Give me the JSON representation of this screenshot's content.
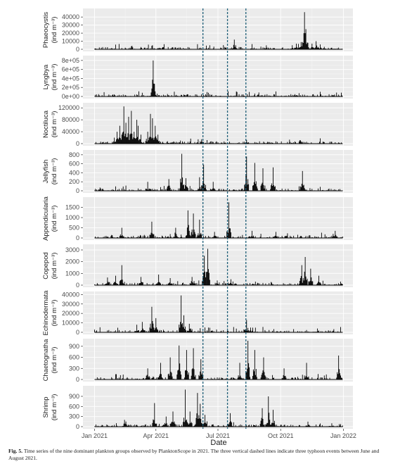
{
  "chart_data": {
    "type": "line",
    "layout": "faceted",
    "xlabel": "Date",
    "x_ticks": [
      {
        "label": "Jan 2021",
        "date": "2021-01-01"
      },
      {
        "label": "Apr 2021",
        "date": "2021-04-01"
      },
      {
        "label": "Jul 2021",
        "date": "2021-07-01"
      },
      {
        "label": "Oct 2021",
        "date": "2021-10-01"
      },
      {
        "label": "Jan 2022",
        "date": "2022-01-01"
      }
    ],
    "xlim": [
      "2020-12-15",
      "2022-01-15"
    ],
    "typhoon_lines": [
      "2021-06-09",
      "2021-07-15",
      "2021-08-11"
    ],
    "panels": [
      {
        "label": "Phaeocystis",
        "unit": "(ind m⁻³)",
        "ylim": [
          0,
          48000
        ],
        "ticks": [
          0,
          10000,
          20000,
          30000,
          40000
        ],
        "tick_labels": [
          "0",
          "10000",
          "20000",
          "30000",
          "40000"
        ],
        "events": [
          [
            "2021-07-25",
            12000
          ],
          [
            "2021-07-27",
            5000
          ],
          [
            "2021-08-20",
            2500
          ],
          [
            "2021-10-18",
            5000
          ],
          [
            "2021-10-24",
            7000
          ],
          [
            "2021-10-31",
            9000
          ],
          [
            "2021-11-04",
            20000
          ],
          [
            "2021-11-05",
            46000
          ],
          [
            "2021-11-07",
            25000
          ],
          [
            "2021-11-10",
            8000
          ],
          [
            "2021-11-16",
            7000
          ],
          [
            "2021-11-22",
            10000
          ],
          [
            "2021-11-28",
            6000
          ],
          [
            "2021-12-04",
            3000
          ]
        ]
      },
      {
        "label": "Lyngbya",
        "unit": "(ind m⁻³)",
        "ylim": [
          0,
          860000
        ],
        "ticks": [
          0,
          200000,
          400000,
          600000,
          800000
        ],
        "tick_labels": [
          "0e+00",
          "2e+05",
          "4e+05",
          "6e+05",
          "8e+05"
        ],
        "events": [
          [
            "2021-01-27",
            30000
          ],
          [
            "2021-01-30",
            45000
          ],
          [
            "2021-03-26",
            60000
          ],
          [
            "2021-03-28",
            800000
          ],
          [
            "2021-03-30",
            120000
          ],
          [
            "2021-05-31",
            15000
          ],
          [
            "2021-08-09",
            12000
          ],
          [
            "2021-11-06",
            10000
          ]
        ]
      },
      {
        "label": "Noctiluca",
        "unit": "(ind m⁻³)",
        "ylim": [
          0,
          130000
        ],
        "ticks": [
          0,
          40000,
          80000,
          120000
        ],
        "tick_labels": [
          "0",
          "40000",
          "80000",
          "120000"
        ],
        "events": [
          [
            "2021-01-20",
            5000
          ],
          [
            "2021-01-30",
            20000
          ],
          [
            "2021-02-03",
            40000
          ],
          [
            "2021-02-07",
            60000
          ],
          [
            "2021-02-10",
            30000
          ],
          [
            "2021-02-13",
            125000
          ],
          [
            "2021-02-16",
            70000
          ],
          [
            "2021-02-20",
            90000
          ],
          [
            "2021-02-24",
            110000
          ],
          [
            "2021-02-28",
            40000
          ],
          [
            "2021-03-04",
            80000
          ],
          [
            "2021-03-06",
            60000
          ],
          [
            "2021-03-10",
            30000
          ],
          [
            "2021-03-20",
            40000
          ],
          [
            "2021-03-24",
            100000
          ],
          [
            "2021-03-27",
            85000
          ],
          [
            "2021-03-31",
            60000
          ],
          [
            "2021-04-04",
            30000
          ],
          [
            "2021-04-18",
            8000
          ],
          [
            "2021-08-12",
            12000
          ]
        ]
      },
      {
        "label": "Jellyfish",
        "unit": "(ind m⁻³)",
        "ylim": [
          0,
          860
        ],
        "ticks": [
          0,
          200,
          400,
          600,
          800
        ],
        "tick_labels": [
          "0",
          "200",
          "400",
          "600",
          "800"
        ],
        "events": [
          [
            "2021-03-20",
            200
          ],
          [
            "2021-04-20",
            260
          ],
          [
            "2021-05-09",
            820
          ],
          [
            "2021-05-15",
            280
          ],
          [
            "2021-06-04",
            300
          ],
          [
            "2021-06-10",
            580
          ],
          [
            "2021-06-24",
            200
          ],
          [
            "2021-08-12",
            760
          ],
          [
            "2021-08-24",
            620
          ],
          [
            "2021-09-05",
            500
          ],
          [
            "2021-09-20",
            520
          ],
          [
            "2021-11-02",
            440
          ]
        ]
      },
      {
        "label": "Appendicularia",
        "unit": "(ind m⁻³)",
        "ylim": [
          0,
          1900
        ],
        "ticks": [
          0,
          500,
          1000,
          1500
        ],
        "tick_labels": [
          "0",
          "500",
          "1000",
          "1500"
        ],
        "events": [
          [
            "2021-02-10",
            500
          ],
          [
            "2021-03-26",
            800
          ],
          [
            "2021-04-30",
            500
          ],
          [
            "2021-05-18",
            1350
          ],
          [
            "2021-05-26",
            1200
          ],
          [
            "2021-06-04",
            900
          ],
          [
            "2021-06-26",
            300
          ],
          [
            "2021-07-17",
            1750
          ],
          [
            "2021-08-20",
            350
          ],
          [
            "2021-09-24",
            300
          ],
          [
            "2021-12-20",
            350
          ]
        ]
      },
      {
        "label": "Copepod",
        "unit": "(ind m⁻³)",
        "ylim": [
          0,
          3300
        ],
        "ticks": [
          0,
          1000,
          2000,
          3000
        ],
        "tick_labels": [
          "0",
          "1000",
          "2000",
          "3000"
        ],
        "events": [
          [
            "2021-01-20",
            650
          ],
          [
            "2021-02-01",
            800
          ],
          [
            "2021-02-10",
            1700
          ],
          [
            "2021-03-10",
            700
          ],
          [
            "2021-04-05",
            900
          ],
          [
            "2021-04-22",
            600
          ],
          [
            "2021-05-24",
            700
          ],
          [
            "2021-06-11",
            2500
          ],
          [
            "2021-06-16",
            3100
          ],
          [
            "2021-06-30",
            400
          ],
          [
            "2021-07-20",
            500
          ],
          [
            "2021-08-25",
            300
          ],
          [
            "2021-11-01",
            1700
          ],
          [
            "2021-11-06",
            2400
          ],
          [
            "2021-11-14",
            1400
          ],
          [
            "2021-11-26",
            800
          ],
          [
            "2021-12-28",
            300
          ]
        ]
      },
      {
        "label": "Echinodermata",
        "unit": "(ind m⁻³)",
        "ylim": [
          0,
          41000
        ],
        "ticks": [
          0,
          10000,
          20000,
          30000,
          40000
        ],
        "tick_labels": [
          "0",
          "10000",
          "20000",
          "30000",
          "40000"
        ],
        "events": [
          [
            "2021-03-04",
            8000
          ],
          [
            "2021-03-12",
            11000
          ],
          [
            "2021-03-26",
            27000
          ],
          [
            "2021-04-01",
            15000
          ],
          [
            "2021-05-08",
            39000
          ],
          [
            "2021-05-12",
            18000
          ],
          [
            "2021-05-20",
            9000
          ],
          [
            "2021-08-12",
            13000
          ],
          [
            "2021-08-18",
            5000
          ],
          [
            "2021-10-01",
            1500
          ],
          [
            "2021-11-24",
            4000
          ]
        ]
      },
      {
        "label": "Chaetognatha",
        "unit": "(ind m⁻³)",
        "ylim": [
          0,
          1050
        ],
        "ticks": [
          0,
          300,
          600,
          900
        ],
        "tick_labels": [
          "0",
          "300",
          "600",
          "900"
        ],
        "events": [
          [
            "2021-03-20",
            300
          ],
          [
            "2021-04-08",
            450
          ],
          [
            "2021-04-22",
            600
          ],
          [
            "2021-05-05",
            920
          ],
          [
            "2021-05-16",
            800
          ],
          [
            "2021-05-26",
            850
          ],
          [
            "2021-06-06",
            550
          ],
          [
            "2021-08-02",
            450
          ],
          [
            "2021-08-14",
            1050
          ],
          [
            "2021-08-24",
            800
          ],
          [
            "2021-09-06",
            600
          ],
          [
            "2021-10-06",
            300
          ],
          [
            "2021-11-08",
            450
          ],
          [
            "2021-12-25",
            650
          ]
        ]
      },
      {
        "label": "Shrimp",
        "unit": "(ind m⁻³)",
        "ylim": [
          0,
          1150
        ],
        "ticks": [
          0,
          300,
          600,
          900
        ],
        "tick_labels": [
          "0",
          "300",
          "600",
          "900"
        ],
        "events": [
          [
            "2021-02-14",
            200
          ],
          [
            "2021-03-30",
            700
          ],
          [
            "2021-04-16",
            300
          ],
          [
            "2021-04-26",
            450
          ],
          [
            "2021-05-14",
            1100
          ],
          [
            "2021-05-21",
            450
          ],
          [
            "2021-06-01",
            1000
          ],
          [
            "2021-06-05",
            680
          ],
          [
            "2021-06-12",
            350
          ],
          [
            "2021-07-19",
            400
          ],
          [
            "2021-09-04",
            550
          ],
          [
            "2021-09-13",
            900
          ],
          [
            "2021-09-20",
            500
          ],
          [
            "2021-11-10",
            150
          ],
          [
            "2021-12-15",
            100
          ]
        ]
      }
    ]
  },
  "caption": {
    "label": "Fig. 5.",
    "text": "Time series of the nine dominant plankton groups observed by PlanktonScope in 2021. The three vertical dashed lines indicate three typhoon events between June and August 2021."
  }
}
